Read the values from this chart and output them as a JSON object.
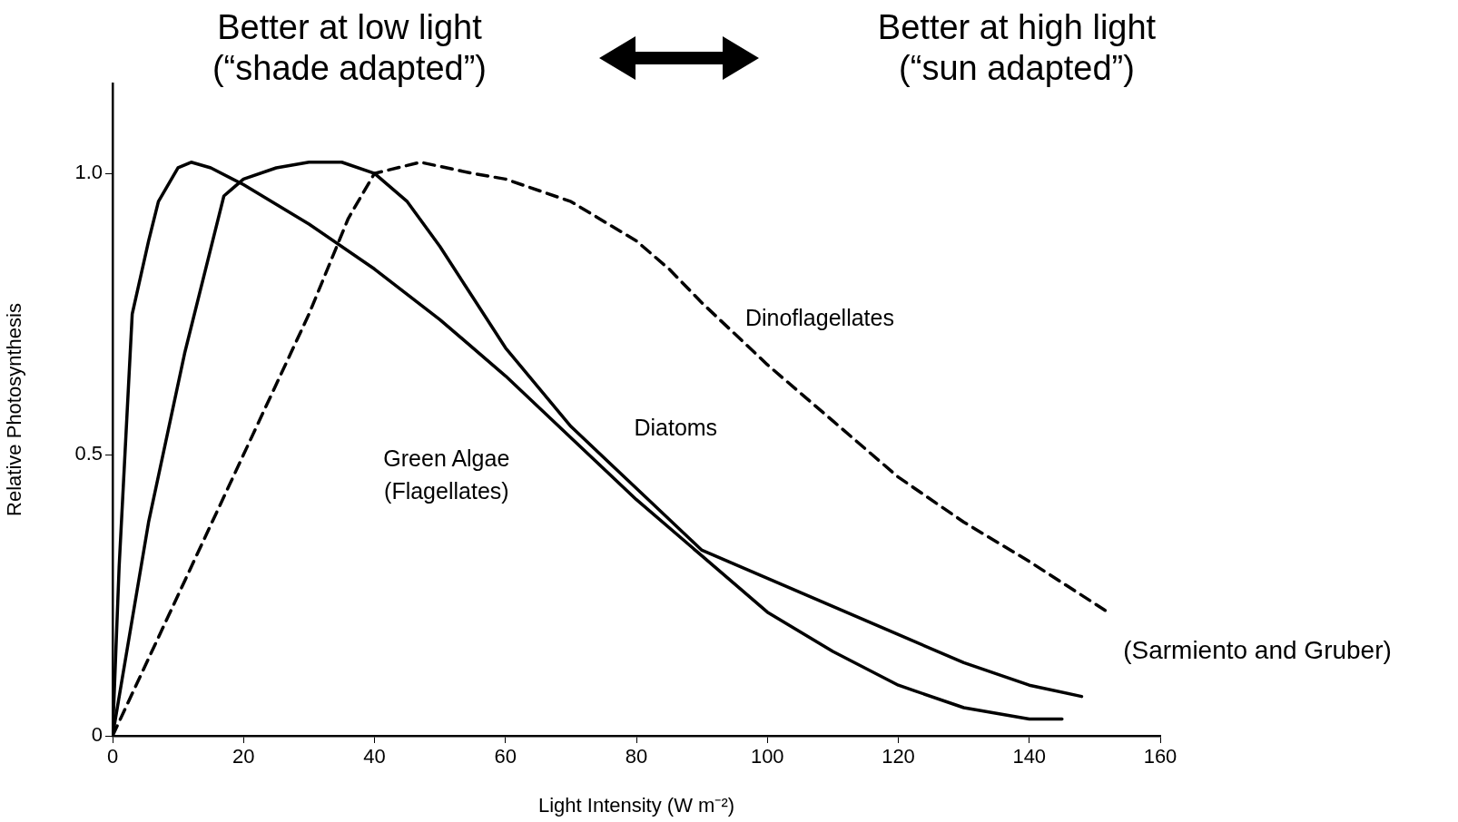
{
  "chart_data": {
    "type": "line",
    "xlabel": "Light Intensity (W m⁻²)",
    "ylabel": "Relative Photosynthesis",
    "annotations": [
      "Better at low light\n(“shade adapted”)",
      "Better at high light\n(“sun adapted”)",
      "(Sarmiento and Gruber)"
    ],
    "xlim": [
      0,
      160
    ],
    "xticks": [
      0,
      20,
      40,
      60,
      80,
      100,
      120,
      140,
      160
    ],
    "ylim": [
      0,
      1.16
    ],
    "yticks": [
      0,
      0.5,
      {
        "value": 1,
        "label": "1.0"
      }
    ],
    "grid": false,
    "legend": false,
    "marker": "none",
    "series": [
      {
        "name": "Green Algae (Flagellates)",
        "color": "#000000",
        "line_style": "solid",
        "x": [
          0,
          1,
          3,
          5.5,
          7,
          10,
          12,
          15,
          20,
          30,
          40,
          50,
          60,
          70,
          80,
          90,
          100,
          110,
          120,
          130,
          140,
          145
        ],
        "values": [
          0,
          0.3,
          0.75,
          0.88,
          0.95,
          1.01,
          1.02,
          1.01,
          0.98,
          0.91,
          0.83,
          0.74,
          0.64,
          0.53,
          0.42,
          0.32,
          0.22,
          0.15,
          0.09,
          0.05,
          0.03,
          0.03
        ]
      },
      {
        "name": "Diatoms",
        "color": "#000000",
        "line_style": "solid",
        "x": [
          0,
          5.5,
          11,
          17,
          20,
          25,
          30,
          35,
          40,
          45,
          50,
          55,
          60,
          70,
          80,
          90,
          100,
          110,
          120,
          130,
          140,
          148
        ],
        "values": [
          0,
          0.38,
          0.68,
          0.96,
          0.99,
          1.01,
          1.02,
          1.02,
          1.0,
          0.95,
          0.87,
          0.78,
          0.69,
          0.55,
          0.44,
          0.33,
          0.28,
          0.23,
          0.18,
          0.13,
          0.09,
          0.07
        ]
      },
      {
        "name": "Dinoflagellates",
        "color": "#000000",
        "line_style": "dashed",
        "x": [
          0,
          10,
          20,
          30,
          36,
          40,
          47,
          55,
          60,
          70,
          80,
          85,
          90,
          100,
          110,
          120,
          130,
          140,
          152
        ],
        "values": [
          0,
          0.25,
          0.5,
          0.75,
          0.92,
          1.0,
          1.02,
          1.0,
          0.99,
          0.95,
          0.88,
          0.83,
          0.77,
          0.66,
          0.56,
          0.46,
          0.38,
          0.31,
          0.22
        ]
      }
    ]
  }
}
